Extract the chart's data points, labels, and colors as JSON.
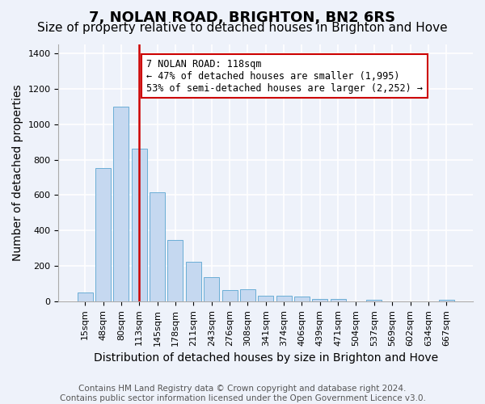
{
  "title": "7, NOLAN ROAD, BRIGHTON, BN2 6RS",
  "subtitle": "Size of property relative to detached houses in Brighton and Hove",
  "xlabel": "Distribution of detached houses by size in Brighton and Hove",
  "ylabel": "Number of detached properties",
  "categories": [
    "15sqm",
    "48sqm",
    "80sqm",
    "113sqm",
    "145sqm",
    "178sqm",
    "211sqm",
    "243sqm",
    "276sqm",
    "308sqm",
    "341sqm",
    "374sqm",
    "406sqm",
    "439sqm",
    "471sqm",
    "504sqm",
    "537sqm",
    "569sqm",
    "602sqm",
    "634sqm",
    "667sqm"
  ],
  "values": [
    50,
    750,
    1100,
    860,
    615,
    345,
    225,
    135,
    65,
    70,
    30,
    30,
    25,
    15,
    15,
    0,
    10,
    0,
    0,
    0,
    10
  ],
  "bar_color": "#c5d8f0",
  "bar_edgecolor": "#6baed6",
  "bar_linewidth": 0.7,
  "vline_x": 3,
  "vline_color": "#cc0000",
  "annotation_text": "7 NOLAN ROAD: 118sqm\n← 47% of detached houses are smaller (1,995)\n53% of semi-detached houses are larger (2,252) →",
  "annotation_box_edgecolor": "#cc0000",
  "annotation_box_facecolor": "#ffffff",
  "ylim": [
    0,
    1450
  ],
  "yticks": [
    0,
    200,
    400,
    600,
    800,
    1000,
    1200,
    1400
  ],
  "title_fontsize": 13,
  "subtitle_fontsize": 11,
  "xlabel_fontsize": 10,
  "ylabel_fontsize": 10,
  "tick_fontsize": 8,
  "annotation_fontsize": 8.5,
  "footer_line1": "Contains HM Land Registry data © Crown copyright and database right 2024.",
  "footer_line2": "Contains public sector information licensed under the Open Government Licence v3.0.",
  "background_color": "#eef2fa",
  "plot_background": "#eef2fa",
  "grid_color": "#ffffff",
  "footer_fontsize": 7.5
}
